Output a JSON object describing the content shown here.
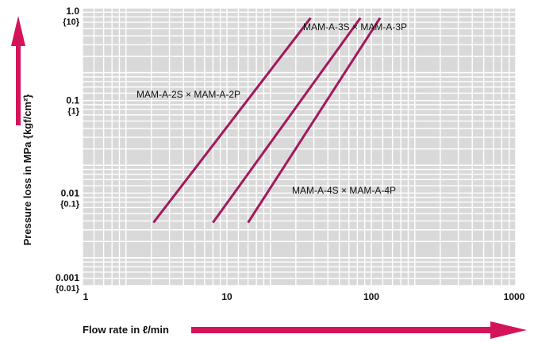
{
  "chart_data": {
    "type": "line",
    "x_scale": "log",
    "y_scale": "log",
    "xlim": [
      1,
      1000
    ],
    "ylim": [
      0.001,
      1.0
    ],
    "grid": true,
    "xlabel": "Flow rate in ℓ/min",
    "ylabel": "Pressure loss in MPa {kgf/cm²}",
    "x_ticks": [
      "1",
      "10",
      "100",
      "1000"
    ],
    "y_ticks": [
      {
        "value": "1.0",
        "sub": "{10}"
      },
      {
        "value": "0.1",
        "sub": "{1}"
      },
      {
        "value": "0.01",
        "sub": "{0.1}"
      },
      {
        "value": "0.001",
        "sub": "{0.01}"
      }
    ],
    "series": [
      {
        "name": "MAM-A-2S × MAM-A-2P",
        "x": [
          3.1,
          38
        ],
        "y": [
          0.0048,
          0.78
        ]
      },
      {
        "name": "MAM-A-3S × MAM-A-3P",
        "x": [
          8.0,
          84
        ],
        "y": [
          0.0048,
          0.78
        ]
      },
      {
        "name": "MAM-A-4S × MAM-A-4P",
        "x": [
          14,
          115
        ],
        "y": [
          0.0048,
          0.78
        ]
      }
    ],
    "colors": {
      "series": "#a3195b",
      "arrow": "#d4145a",
      "plot_bg": "#d9d9d9",
      "grid": "#ffffff"
    }
  }
}
